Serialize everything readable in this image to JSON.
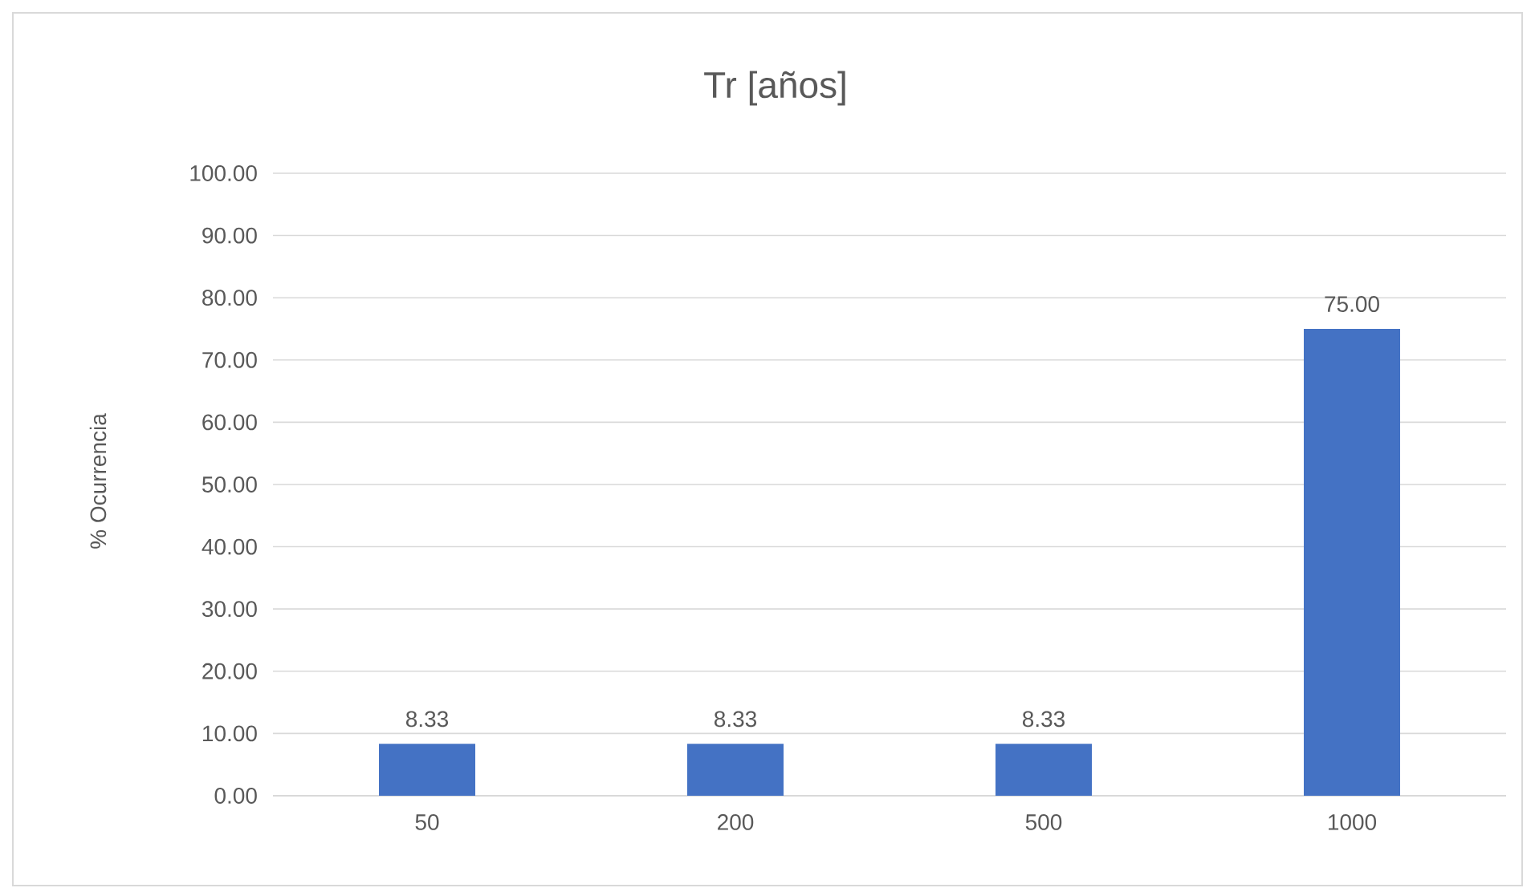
{
  "chart_data": {
    "type": "bar",
    "title": "Tr [años]",
    "ylabel": "% Ocurrencia",
    "categories": [
      "50",
      "200",
      "500",
      "1000"
    ],
    "values": [
      8.33,
      8.33,
      8.33,
      75
    ],
    "color": "#4472c4",
    "value_labels": [
      "8.33",
      "8.33",
      "8.33",
      "75.00"
    ],
    "ylim": [
      0,
      100
    ],
    "yticks": [
      {
        "value": 0,
        "label": "0.00"
      },
      {
        "value": 10,
        "label": "10.00"
      },
      {
        "value": 20,
        "label": "20.00"
      },
      {
        "value": 30,
        "label": "30.00"
      },
      {
        "value": 40,
        "label": "40.00"
      },
      {
        "value": 50,
        "label": "50.00"
      },
      {
        "value": 60,
        "label": "60.00"
      },
      {
        "value": 70,
        "label": "70.00"
      },
      {
        "value": 80,
        "label": "80.00"
      },
      {
        "value": 90,
        "label": "90.00"
      },
      {
        "value": 100,
        "label": "100.00"
      }
    ],
    "grid": "y",
    "legend": false
  }
}
